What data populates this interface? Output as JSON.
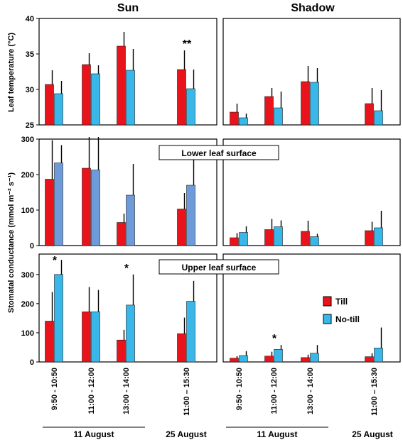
{
  "columns": [
    "Sun",
    "Shadow"
  ],
  "colors": {
    "till": "#e8131b",
    "no_till": "#38b7e8",
    "no_till_lower_sun": "#6d9bd9"
  },
  "legend": {
    "till": "Till",
    "no_till": "No-till"
  },
  "ylabels": {
    "temp": "Leaf temperature (°C)",
    "cond": "Stomatal conductance  (mmol m⁻² s⁻¹)"
  },
  "subpanel_labels": {
    "lower": "Lower leaf surface",
    "upper": "Upper leaf surface"
  },
  "categories": [
    "9:50 - 10:50",
    "11:00 - 12:00",
    "13:00 - 14:00",
    "11:00 – 15:30"
  ],
  "dates": [
    "11 August",
    "25 August"
  ],
  "chart_data": [
    {
      "type": "bar",
      "panel": "Sun – Leaf temperature",
      "categories": [
        "9:50 - 10:50",
        "11:00 - 12:00",
        "13:00 - 14:00",
        "11:00 – 15:30"
      ],
      "ylim": [
        25,
        40
      ],
      "yticks": [
        25,
        30,
        35,
        40
      ],
      "series": [
        {
          "name": "Till",
          "values": [
            30.7,
            33.5,
            36.1,
            32.8
          ],
          "errors": [
            2.0,
            1.6,
            2.0,
            2.7
          ]
        },
        {
          "name": "No-till",
          "values": [
            29.4,
            32.2,
            32.7,
            30.1
          ],
          "errors": [
            1.8,
            1.2,
            3.0,
            2.7
          ]
        }
      ],
      "annotations": [
        {
          "category": 3,
          "text": "**"
        }
      ]
    },
    {
      "type": "bar",
      "panel": "Shadow – Leaf temperature",
      "categories": [
        "9:50 - 10:50",
        "11:00 - 12:00",
        "13:00 - 14:00",
        "11:00 – 15:30"
      ],
      "ylim": [
        25,
        40
      ],
      "yticks": [
        25,
        30,
        35,
        40
      ],
      "series": [
        {
          "name": "Till",
          "values": [
            26.8,
            29.0,
            31.1,
            28.0
          ],
          "errors": [
            1.2,
            1.2,
            2.2,
            2.2
          ]
        },
        {
          "name": "No-till",
          "values": [
            26.0,
            27.4,
            31.0,
            27.0
          ],
          "errors": [
            0.6,
            2.3,
            2.0,
            2.9
          ]
        }
      ],
      "annotations": []
    },
    {
      "type": "bar",
      "panel": "Sun – Lower leaf surface",
      "categories": [
        "9:50 - 10:50",
        "11:00 - 12:00",
        "13:00 - 14:00",
        "11:00 – 15:30"
      ],
      "ylim": [
        0,
        300
      ],
      "yticks": [
        0,
        100,
        200,
        300
      ],
      "series": [
        {
          "name": "Till",
          "values": [
            187,
            218,
            65,
            103
          ],
          "errors": [
            110,
            95,
            25,
            45
          ]
        },
        {
          "name": "No-till",
          "values": [
            233,
            213,
            142,
            170
          ],
          "errors": [
            50,
            100,
            88,
            83
          ]
        }
      ],
      "annotations": [
        {
          "category": 3,
          "text": "*"
        }
      ]
    },
    {
      "type": "bar",
      "panel": "Shadow – Lower leaf surface",
      "categories": [
        "9:50 - 10:50",
        "11:00 - 12:00",
        "13:00 - 14:00",
        "11:00 – 15:30"
      ],
      "ylim": [
        0,
        300
      ],
      "yticks": [
        0,
        100,
        200,
        300
      ],
      "series": [
        {
          "name": "Till",
          "values": [
            22,
            45,
            40,
            42
          ],
          "errors": [
            13,
            30,
            30,
            25
          ]
        },
        {
          "name": "No-till",
          "values": [
            37,
            53,
            25,
            50
          ],
          "errors": [
            17,
            18,
            8,
            48
          ]
        }
      ],
      "annotations": []
    },
    {
      "type": "bar",
      "panel": "Sun – Upper leaf surface",
      "categories": [
        "9:50 - 10:50",
        "11:00 - 12:00",
        "13:00 - 14:00",
        "11:00 – 15:30"
      ],
      "ylim": [
        0,
        370
      ],
      "yticks": [
        0,
        100,
        200,
        300
      ],
      "series": [
        {
          "name": "Till",
          "values": [
            140,
            172,
            75,
            97
          ],
          "errors": [
            100,
            85,
            35,
            55
          ]
        },
        {
          "name": "No-till",
          "values": [
            300,
            172,
            195,
            208
          ],
          "errors": [
            50,
            75,
            105,
            70
          ]
        }
      ],
      "annotations": [
        {
          "category": 0,
          "text": "*"
        },
        {
          "category": 2,
          "text": "*"
        },
        {
          "category": 3,
          "text": "**"
        }
      ]
    },
    {
      "type": "bar",
      "panel": "Shadow – Upper leaf surface",
      "categories": [
        "9:50 - 10:50",
        "11:00 - 12:00",
        "13:00 - 14:00",
        "11:00 – 15:30"
      ],
      "ylim": [
        0,
        370
      ],
      "yticks": [
        0,
        100,
        200,
        300
      ],
      "series": [
        {
          "name": "Till",
          "values": [
            13,
            20,
            15,
            18
          ],
          "errors": [
            7,
            15,
            10,
            12
          ]
        },
        {
          "name": "No-till",
          "values": [
            22,
            43,
            30,
            48
          ],
          "errors": [
            15,
            15,
            28,
            70
          ]
        }
      ],
      "annotations": [
        {
          "category": 1,
          "text": "*"
        }
      ]
    }
  ]
}
